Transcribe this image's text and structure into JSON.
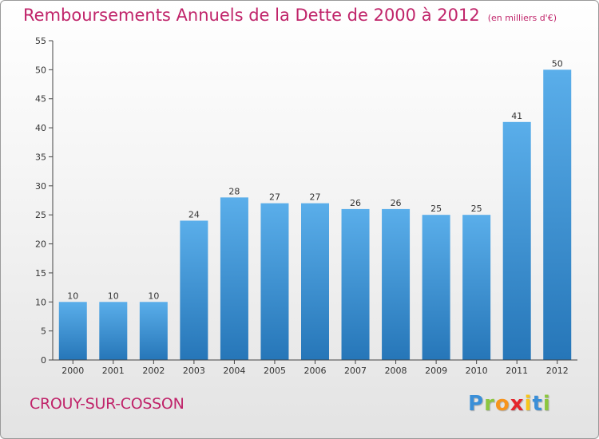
{
  "title": "Remboursements Annuels de la Dette de 2000 à 2012",
  "unit": "(en milliers d'€)",
  "commune": "CROUY-SUR-COSSON",
  "logo": {
    "letters": [
      {
        "char": "P",
        "color": "#3a8fd8"
      },
      {
        "char": "r",
        "color": "#8cc63f"
      },
      {
        "char": "o",
        "color": "#f7941d"
      },
      {
        "char": "x",
        "color": "#e4262d"
      },
      {
        "char": "i",
        "color": "#f7c61a"
      },
      {
        "char": "t",
        "color": "#3a8fd8"
      },
      {
        "char": "i",
        "color": "#8cc63f"
      }
    ]
  },
  "colors": {
    "title": "#c0246a",
    "bar_top": "#5aaeea",
    "bar_bottom": "#2676b8",
    "axis": "#444444"
  },
  "chart_data": {
    "type": "bar",
    "categories": [
      "2000",
      "2001",
      "2002",
      "2003",
      "2004",
      "2005",
      "2006",
      "2007",
      "2008",
      "2009",
      "2010",
      "2011",
      "2012"
    ],
    "values": [
      10,
      10,
      10,
      24,
      28,
      27,
      27,
      26,
      26,
      25,
      25,
      41,
      50
    ],
    "ylim": [
      0,
      55
    ],
    "yticks": [
      0,
      5,
      10,
      15,
      20,
      25,
      30,
      35,
      40,
      45,
      50,
      55
    ],
    "grid": false,
    "data_labels": true
  }
}
